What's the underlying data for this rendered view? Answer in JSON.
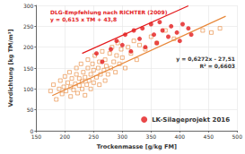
{
  "chart_data": {
    "type": "scatter",
    "x_label": "Trockenmasse [g/kg FM]",
    "y_label": "Verdichtung [kg TM/m³]",
    "xlim": [
      150,
      500
    ],
    "xticks": [
      150,
      200,
      250,
      300,
      350,
      400,
      450,
      500
    ],
    "ylim": [
      0,
      300
    ],
    "yticks": [
      0,
      50,
      100,
      150,
      200,
      250,
      300
    ],
    "grid": true,
    "legend": "lower right",
    "annotations": [
      "DLG-Empfehlung nach RICHTER (2009)",
      "y = 0,615 x TM + 43,8",
      "y = 0,6272x - 27,51",
      "R² = 0,6603"
    ],
    "series": [
      {
        "type": "scatter",
        "color": "#e8883a",
        "marker": "square-open",
        "values": [
          [
            175,
            95
          ],
          [
            180,
            110
          ],
          [
            185,
            75
          ],
          [
            190,
            100
          ],
          [
            192,
            120
          ],
          [
            195,
            88
          ],
          [
            198,
            105
          ],
          [
            200,
            130
          ],
          [
            202,
            95
          ],
          [
            205,
            115
          ],
          [
            208,
            140
          ],
          [
            210,
            82
          ],
          [
            210,
            105
          ],
          [
            212,
            125
          ],
          [
            215,
            98
          ],
          [
            218,
            112
          ],
          [
            220,
            135
          ],
          [
            220,
            150
          ],
          [
            222,
            90
          ],
          [
            225,
            108
          ],
          [
            225,
            125
          ],
          [
            228,
            160
          ],
          [
            230,
            100
          ],
          [
            230,
            118
          ],
          [
            232,
            140
          ],
          [
            235,
            85
          ],
          [
            235,
            128
          ],
          [
            238,
            110
          ],
          [
            240,
            150
          ],
          [
            240,
            170
          ],
          [
            242,
            120
          ],
          [
            245,
            135
          ],
          [
            245,
            100
          ],
          [
            248,
            160
          ],
          [
            250,
            115
          ],
          [
            250,
            145
          ],
          [
            252,
            180
          ],
          [
            255,
            128
          ],
          [
            258,
            150
          ],
          [
            260,
            110
          ],
          [
            260,
            165
          ],
          [
            262,
            135
          ],
          [
            265,
            190
          ],
          [
            268,
            145
          ],
          [
            270,
            120
          ],
          [
            270,
            170
          ],
          [
            272,
            155
          ],
          [
            275,
            135
          ],
          [
            278,
            185
          ],
          [
            280,
            150
          ],
          [
            282,
            200
          ],
          [
            285,
            165
          ],
          [
            288,
            140
          ],
          [
            290,
            180
          ],
          [
            292,
            210
          ],
          [
            295,
            160
          ],
          [
            298,
            195
          ],
          [
            300,
            175
          ],
          [
            305,
            150
          ],
          [
            310,
            200
          ],
          [
            315,
            185
          ],
          [
            320,
            215
          ],
          [
            325,
            170
          ],
          [
            330,
            205
          ],
          [
            340,
            195
          ],
          [
            350,
            225
          ],
          [
            360,
            210
          ],
          [
            375,
            240
          ],
          [
            390,
            220
          ],
          [
            440,
            240
          ],
          [
            455,
            235
          ],
          [
            470,
            245
          ]
        ]
      },
      {
        "type": "line",
        "color": "#e41a1c",
        "line_style": "solid",
        "values": [
          [
            230,
            185
          ],
          [
            415,
            299
          ]
        ]
      },
      {
        "type": "line",
        "color": "#e8883a",
        "line_style": "solid",
        "values": [
          [
            178,
            84
          ],
          [
            480,
            274
          ]
        ]
      },
      {
        "name": "LK-Silageprojekt 2016",
        "type": "scatter",
        "color": "#e41a1c",
        "marker": "circle",
        "values": [
          [
            255,
            185
          ],
          [
            265,
            165
          ],
          [
            280,
            195
          ],
          [
            290,
            215
          ],
          [
            300,
            205
          ],
          [
            305,
            230
          ],
          [
            315,
            190
          ],
          [
            320,
            240
          ],
          [
            330,
            220
          ],
          [
            335,
            245
          ],
          [
            340,
            200
          ],
          [
            350,
            255
          ],
          [
            355,
            230
          ],
          [
            360,
            210
          ],
          [
            365,
            260
          ],
          [
            370,
            240
          ],
          [
            380,
            225
          ],
          [
            385,
            250
          ],
          [
            395,
            235
          ],
          [
            400,
            215
          ],
          [
            405,
            255
          ],
          [
            415,
            245
          ],
          [
            420,
            230
          ]
        ]
      }
    ]
  }
}
